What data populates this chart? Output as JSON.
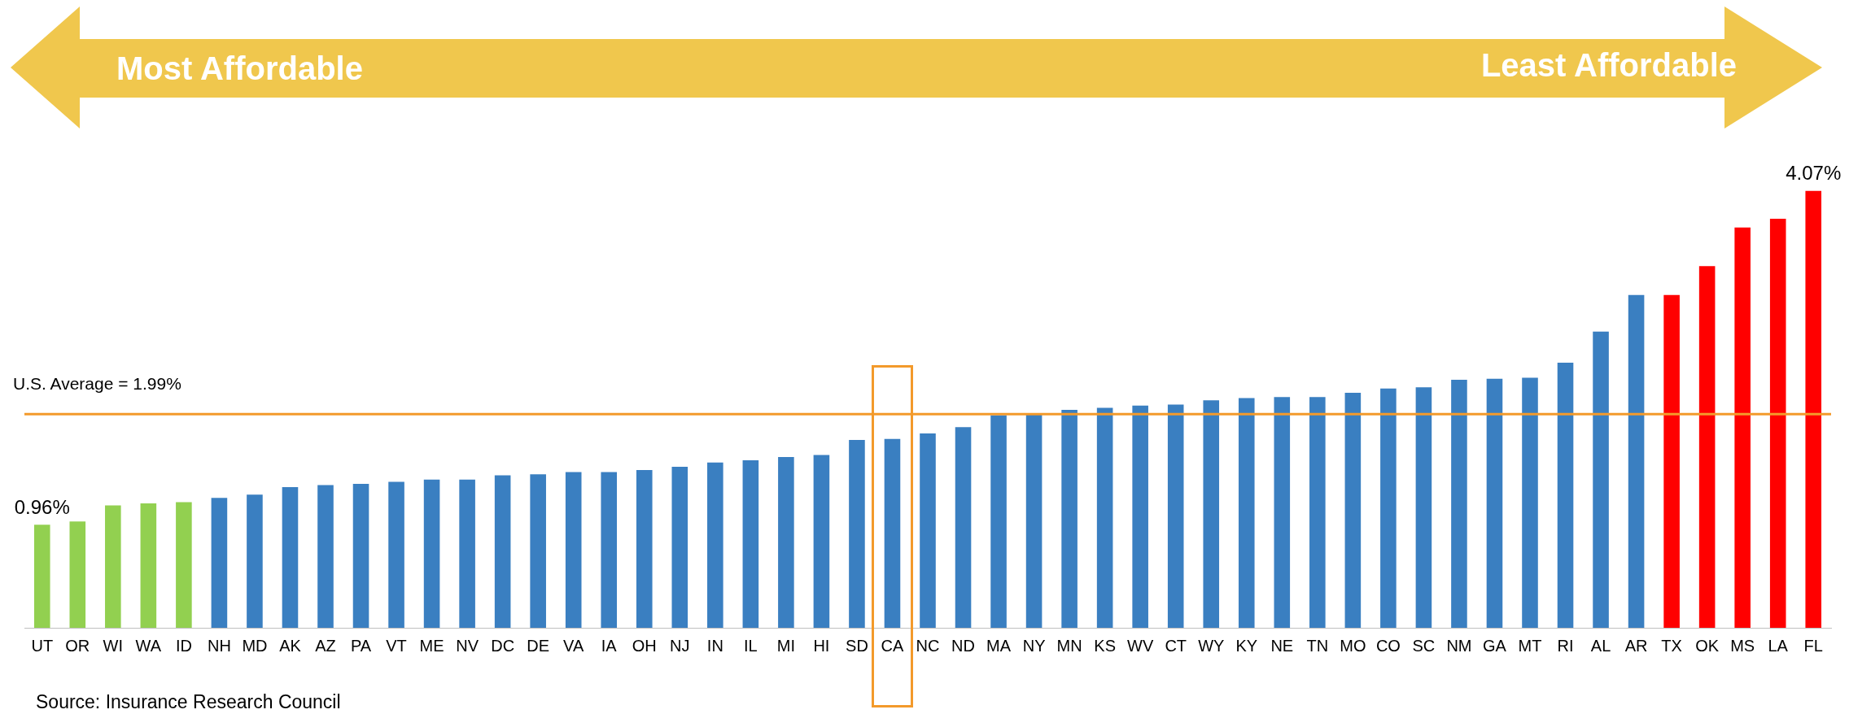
{
  "chart_data": {
    "type": "bar",
    "categories": [
      "UT",
      "OR",
      "WI",
      "WA",
      "ID",
      "NH",
      "MD",
      "AK",
      "AZ",
      "PA",
      "VT",
      "ME",
      "NV",
      "DC",
      "DE",
      "VA",
      "IA",
      "OH",
      "NJ",
      "IN",
      "IL",
      "MI",
      "HI",
      "SD",
      "CA",
      "NC",
      "ND",
      "MA",
      "NY",
      "MN",
      "KS",
      "WV",
      "CT",
      "WY",
      "KY",
      "NE",
      "TN",
      "MO",
      "CO",
      "SC",
      "NM",
      "GA",
      "MT",
      "RI",
      "AL",
      "AR",
      "TX",
      "OK",
      "MS",
      "LA",
      "FL"
    ],
    "values": [
      0.96,
      0.99,
      1.14,
      1.16,
      1.17,
      1.21,
      1.24,
      1.31,
      1.33,
      1.34,
      1.36,
      1.38,
      1.38,
      1.42,
      1.43,
      1.45,
      1.45,
      1.47,
      1.5,
      1.54,
      1.56,
      1.59,
      1.61,
      1.75,
      1.76,
      1.81,
      1.87,
      1.98,
      1.99,
      2.03,
      2.05,
      2.07,
      2.08,
      2.12,
      2.14,
      2.15,
      2.15,
      2.19,
      2.23,
      2.24,
      2.31,
      2.32,
      2.33,
      2.47,
      2.76,
      3.1,
      3.1,
      3.37,
      3.73,
      3.81,
      4.07
    ],
    "colors": [
      "#92d050",
      "#92d050",
      "#92d050",
      "#92d050",
      "#92d050",
      "#3a7fc1",
      "#3a7fc1",
      "#3a7fc1",
      "#3a7fc1",
      "#3a7fc1",
      "#3a7fc1",
      "#3a7fc1",
      "#3a7fc1",
      "#3a7fc1",
      "#3a7fc1",
      "#3a7fc1",
      "#3a7fc1",
      "#3a7fc1",
      "#3a7fc1",
      "#3a7fc1",
      "#3a7fc1",
      "#3a7fc1",
      "#3a7fc1",
      "#3a7fc1",
      "#3a7fc1",
      "#3a7fc1",
      "#3a7fc1",
      "#3a7fc1",
      "#3a7fc1",
      "#3a7fc1",
      "#3a7fc1",
      "#3a7fc1",
      "#3a7fc1",
      "#3a7fc1",
      "#3a7fc1",
      "#3a7fc1",
      "#3a7fc1",
      "#3a7fc1",
      "#3a7fc1",
      "#3a7fc1",
      "#3a7fc1",
      "#3a7fc1",
      "#3a7fc1",
      "#3a7fc1",
      "#3a7fc1",
      "#3a7fc1",
      "#ff0000",
      "#ff0000",
      "#ff0000",
      "#ff0000",
      "#ff0000"
    ],
    "value_labels": [
      "0.96%",
      null,
      null,
      null,
      null,
      null,
      null,
      null,
      null,
      null,
      null,
      null,
      null,
      null,
      null,
      null,
      null,
      null,
      null,
      null,
      null,
      null,
      null,
      null,
      null,
      null,
      null,
      null,
      null,
      null,
      null,
      null,
      null,
      null,
      null,
      null,
      null,
      null,
      null,
      null,
      null,
      null,
      null,
      null,
      null,
      null,
      null,
      null,
      null,
      null,
      "4.07%"
    ],
    "tick_labels": "x",
    "grid": false,
    "legend": false,
    "ref_lines": [
      {
        "axis": "y",
        "value": 1.99,
        "label": "U.S. Average = 1.99%",
        "color": "#f39a2b"
      }
    ],
    "annotations": [
      "Most Affordable",
      "Least Affordable",
      "Source: Insurance Research Council"
    ]
  }
}
